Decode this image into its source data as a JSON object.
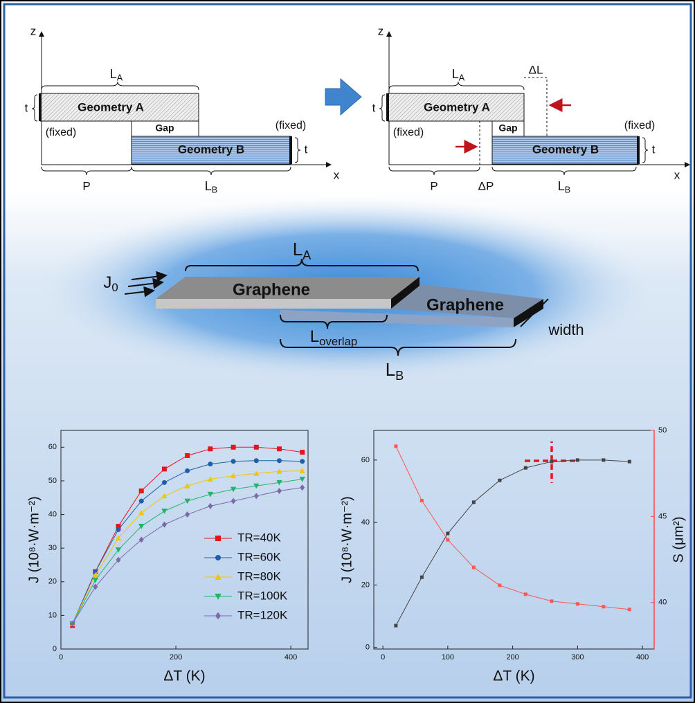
{
  "diagram": {
    "left": {
      "z": "z",
      "x": "x",
      "la": {
        "main": "L",
        "sub": "A"
      },
      "t_top": "t",
      "geom_a": "Geometry A",
      "gap": "Gap",
      "fixed_left": "(fixed)",
      "fixed_right": "(fixed)",
      "geom_b": "Geometry B",
      "t_right": "t",
      "p": "P",
      "lb": {
        "main": "L",
        "sub": "B"
      }
    },
    "right": {
      "z": "z",
      "x": "x",
      "la": {
        "main": "L",
        "sub": "A"
      },
      "dl": "ΔL",
      "t_top": "t",
      "geom_a": "Geometry A",
      "gap": "Gap",
      "fixed_left": "(fixed)",
      "fixed_right": "(fixed)",
      "geom_b": "Geometry B",
      "t_right": "t",
      "p": "P",
      "dp": "ΔP",
      "lb": {
        "main": "L",
        "sub": "B"
      }
    },
    "graphene": {
      "j0": {
        "main": "J",
        "sub": "0"
      },
      "la": {
        "main": "L",
        "sub": "A"
      },
      "g1": "Graphene",
      "g2": "Graphene",
      "overlap": {
        "main": "L",
        "sub": "overlap"
      },
      "lb": {
        "main": "L",
        "sub": "B"
      },
      "width": "width"
    }
  },
  "chart_data": [
    {
      "type": "line",
      "x": [
        20,
        60,
        100,
        140,
        180,
        220,
        260,
        300,
        340,
        380,
        420
      ],
      "xlim": [
        0,
        430
      ],
      "ylim": [
        0,
        65
      ],
      "xticks": [
        0,
        200,
        400
      ],
      "yticks": [
        0,
        10,
        20,
        30,
        40,
        50,
        60
      ],
      "xlabel": "ΔT (K)",
      "ylabel": "J (10⁸·W·m⁻²)",
      "legend": "lower right",
      "series": [
        {
          "name": "TR=40K",
          "color": "#e8141c",
          "marker": "square",
          "values": [
            7,
            23,
            36.5,
            47,
            53.5,
            57.5,
            59.5,
            60,
            60,
            59.5,
            58.5
          ]
        },
        {
          "name": "TR=60K",
          "color": "#1f5fa8",
          "marker": "circle",
          "values": [
            7.5,
            23,
            35.5,
            44,
            49.5,
            53,
            55,
            55.8,
            56,
            56,
            55.8
          ]
        },
        {
          "name": "TR=80K",
          "color": "#f5c400",
          "marker": "triangle-up",
          "values": [
            7.5,
            22,
            33,
            40.5,
            45.5,
            48.5,
            50.5,
            51.5,
            52.2,
            52.8,
            53
          ]
        },
        {
          "name": "TR=100K",
          "color": "#1fb56a",
          "marker": "triangle-down",
          "values": [
            7.5,
            20.5,
            29.5,
            36.5,
            41,
            44,
            46,
            47.5,
            48.5,
            49.5,
            50.5
          ]
        },
        {
          "name": "TR=120K",
          "color": "#7a6aa8",
          "marker": "diamond",
          "values": [
            7.5,
            18.5,
            26.5,
            32.5,
            37,
            40,
            42.5,
            44,
            45.5,
            47,
            48
          ]
        }
      ]
    },
    {
      "type": "line",
      "x": [
        20,
        60,
        100,
        140,
        180,
        220,
        260,
        300,
        340,
        380
      ],
      "xlim": [
        -14,
        418
      ],
      "ylim": [
        -0.5,
        69.5
      ],
      "y2lim": [
        37.3,
        50
      ],
      "xticks": [
        0,
        100,
        200,
        300,
        400
      ],
      "yticks": [
        0,
        20,
        40,
        60
      ],
      "y2ticks": [
        40,
        45,
        50
      ],
      "xlabel": "ΔT (K)",
      "ylabel": "J (10⁸·W·m⁻²)",
      "y2label": "S (μm²)",
      "y2color": "#ff4444",
      "series": [
        {
          "color": "#444444",
          "marker": "square",
          "values": [
            7,
            22.5,
            36.5,
            46.5,
            53.5,
            57.5,
            59.5,
            60,
            60,
            59.5
          ]
        },
        {
          "color": "#ff5555",
          "marker": "square",
          "axis": "y2",
          "values": [
            49.08,
            45.92,
            43.64,
            42.04,
            41,
            40.48,
            40.08,
            39.92,
            39.76,
            39.6
          ]
        }
      ]
    }
  ]
}
